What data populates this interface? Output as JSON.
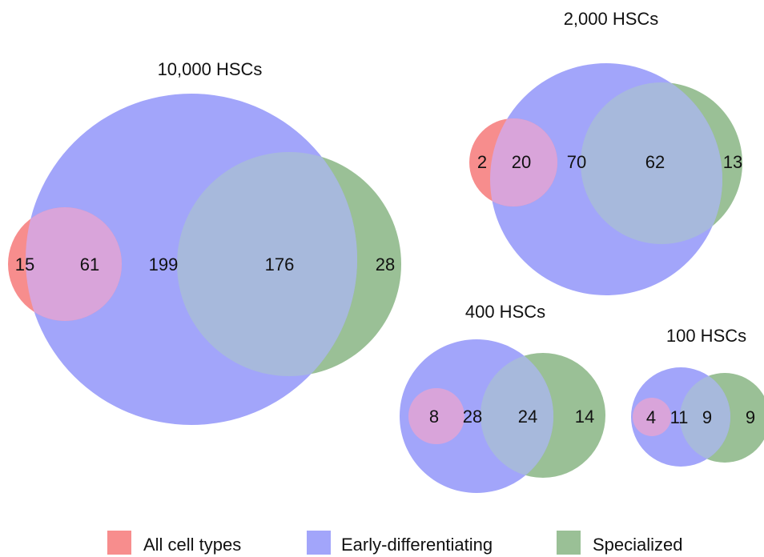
{
  "colors": {
    "all_cell_types": "#f78d8d",
    "early_differentiating": "#a2a5fa",
    "specialized": "#9ac096",
    "all_early_overlap": "#d9a4da",
    "early_specialized_overlap": "#a7b9dc"
  },
  "diagrams": [
    {
      "title": "10,000 HSCs",
      "counts": {
        "all_only": "15",
        "all_early": "61",
        "early_only": "199",
        "early_specialized": "176",
        "specialized_only": "28"
      }
    },
    {
      "title": "2,000 HSCs",
      "counts": {
        "all_only": "2",
        "all_early": "20",
        "early_only": "70",
        "early_specialized": "62",
        "specialized_only": "13"
      }
    },
    {
      "title": "400 HSCs",
      "counts": {
        "all_early": "8",
        "early_only": "28",
        "early_specialized": "24",
        "specialized_only": "14"
      }
    },
    {
      "title": "100 HSCs",
      "counts": {
        "all_early": "4",
        "early_only": "11",
        "early_specialized": "9",
        "specialized_only": "9"
      }
    }
  ],
  "legend": [
    {
      "label": "All cell types",
      "color": "#f78d8d"
    },
    {
      "label": "Early-differentiating",
      "color": "#a2a5fa"
    },
    {
      "label": "Specialized",
      "color": "#9ac096"
    }
  ]
}
